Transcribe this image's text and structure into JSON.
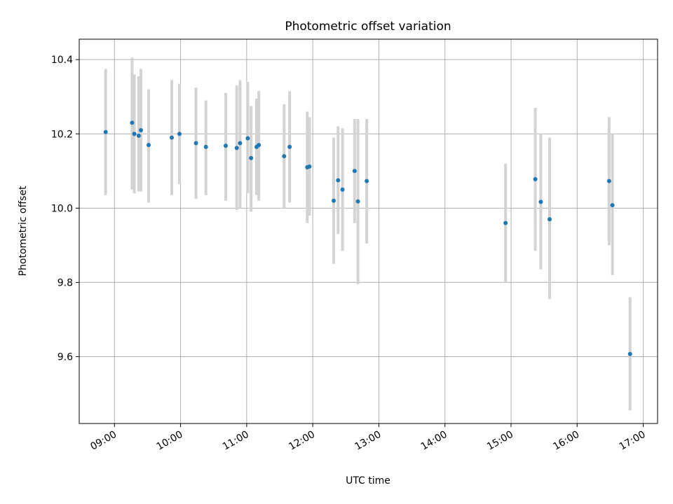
{
  "chart_data": {
    "type": "scatter",
    "title": "Photometric offset variation",
    "xlabel": "UTC time",
    "ylabel": "Photometric offset",
    "x_tick_labels": [
      "09:00",
      "10:00",
      "11:00",
      "12:00",
      "13:00",
      "14:00",
      "15:00",
      "16:00",
      "17:00"
    ],
    "y_tick_labels": [
      "9.6",
      "9.8",
      "10.0",
      "10.2",
      "10.4"
    ],
    "y_ticks": [
      9.6,
      9.8,
      10.0,
      10.2,
      10.4
    ],
    "xlim": [
      "08:28",
      "17:13"
    ],
    "ylim": [
      9.42,
      10.455
    ],
    "grid": true,
    "colors": {
      "marker": "#1f77b4",
      "errorbar": "#d3d3d3",
      "grid": "#b0b0b0"
    },
    "points": [
      {
        "x": "08:52",
        "y": 10.205,
        "ylo": 10.035,
        "yhi": 10.375
      },
      {
        "x": "09:16",
        "y": 10.23,
        "ylo": 10.05,
        "yhi": 10.405
      },
      {
        "x": "09:18",
        "y": 10.2,
        "ylo": 10.04,
        "yhi": 10.36
      },
      {
        "x": "09:22",
        "y": 10.195,
        "ylo": 10.045,
        "yhi": 10.355
      },
      {
        "x": "09:24",
        "y": 10.21,
        "ylo": 10.045,
        "yhi": 10.375
      },
      {
        "x": "09:31",
        "y": 10.17,
        "ylo": 10.015,
        "yhi": 10.32
      },
      {
        "x": "09:52",
        "y": 10.19,
        "ylo": 10.035,
        "yhi": 10.345
      },
      {
        "x": "09:59",
        "y": 10.2,
        "ylo": 10.065,
        "yhi": 10.335
      },
      {
        "x": "10:14",
        "y": 10.175,
        "ylo": 10.025,
        "yhi": 10.325
      },
      {
        "x": "10:23",
        "y": 10.165,
        "ylo": 10.035,
        "yhi": 10.29
      },
      {
        "x": "10:41",
        "y": 10.168,
        "ylo": 10.02,
        "yhi": 10.31
      },
      {
        "x": "10:51",
        "y": 10.162,
        "ylo": 9.995,
        "yhi": 10.33
      },
      {
        "x": "10:54",
        "y": 10.175,
        "ylo": 10.0,
        "yhi": 10.345
      },
      {
        "x": "11:01",
        "y": 10.188,
        "ylo": 10.04,
        "yhi": 10.34
      },
      {
        "x": "11:04",
        "y": 10.135,
        "ylo": 9.99,
        "yhi": 10.275
      },
      {
        "x": "11:09",
        "y": 10.165,
        "ylo": 10.035,
        "yhi": 10.295
      },
      {
        "x": "11:11",
        "y": 10.17,
        "ylo": 10.02,
        "yhi": 10.315
      },
      {
        "x": "11:34",
        "y": 10.14,
        "ylo": 10.0,
        "yhi": 10.28
      },
      {
        "x": "11:39",
        "y": 10.165,
        "ylo": 10.015,
        "yhi": 10.315
      },
      {
        "x": "11:55",
        "y": 10.11,
        "ylo": 9.96,
        "yhi": 10.26
      },
      {
        "x": "11:57",
        "y": 10.112,
        "ylo": 9.98,
        "yhi": 10.245
      },
      {
        "x": "12:19",
        "y": 10.02,
        "ylo": 9.85,
        "yhi": 10.19
      },
      {
        "x": "12:23",
        "y": 10.075,
        "ylo": 9.93,
        "yhi": 10.22
      },
      {
        "x": "12:27",
        "y": 10.05,
        "ylo": 9.885,
        "yhi": 10.215
      },
      {
        "x": "12:38",
        "y": 10.1,
        "ylo": 9.96,
        "yhi": 10.24
      },
      {
        "x": "12:41",
        "y": 10.018,
        "ylo": 9.795,
        "yhi": 10.24
      },
      {
        "x": "12:49",
        "y": 10.073,
        "ylo": 9.905,
        "yhi": 10.24
      },
      {
        "x": "14:55",
        "y": 9.96,
        "ylo": 9.8,
        "yhi": 10.12
      },
      {
        "x": "15:22",
        "y": 10.078,
        "ylo": 9.885,
        "yhi": 10.27
      },
      {
        "x": "15:27",
        "y": 10.017,
        "ylo": 9.835,
        "yhi": 10.2
      },
      {
        "x": "15:35",
        "y": 9.97,
        "ylo": 9.755,
        "yhi": 10.19
      },
      {
        "x": "16:29",
        "y": 10.073,
        "ylo": 9.9,
        "yhi": 10.245
      },
      {
        "x": "16:32",
        "y": 10.008,
        "ylo": 9.82,
        "yhi": 10.2
      },
      {
        "x": "16:48",
        "y": 9.607,
        "ylo": 9.455,
        "yhi": 9.76
      }
    ]
  }
}
